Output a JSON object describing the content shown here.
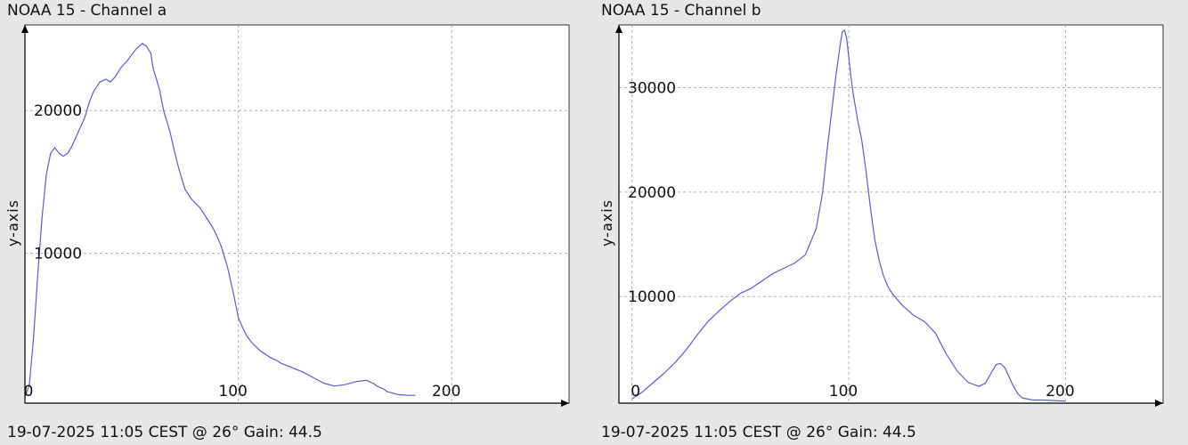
{
  "charts": [
    {
      "title": "NOAA 15 - Channel a",
      "footer": "19-07-2025 11:05 CEST @ 26° Gain: 44.5"
    },
    {
      "title": "NOAA 15 - Channel b",
      "footer": "19-07-2025 11:05 CEST @ 26° Gain: 44.5"
    }
  ],
  "colors": {
    "background": "#e7e7e7",
    "plot_background": "#ffffff",
    "line": "#5b5bd6",
    "grid": "#b0b0b0",
    "axis": "#000000"
  },
  "chart_data": [
    {
      "type": "line",
      "title": "NOAA 15 - Channel a",
      "xlabel": "",
      "ylabel": "y-axis",
      "xlim": [
        0,
        255
      ],
      "ylim": [
        -500,
        26000
      ],
      "xticks": [
        0,
        100,
        200
      ],
      "yticks": [
        10000,
        20000
      ],
      "x_tick_labels": [
        "0",
        "100",
        "200"
      ],
      "y_tick_labels": [
        "10000",
        "20000"
      ],
      "grid": true,
      "series": [
        {
          "x": [
            0,
            2,
            4,
            6,
            8,
            10,
            12,
            14,
            16,
            18,
            20,
            22,
            25,
            28,
            30,
            32,
            35,
            38,
            40,
            42,
            45,
            48,
            50,
            52,
            55,
            57,
            59,
            60,
            61,
            63,
            65,
            68,
            70,
            72,
            75,
            78,
            80,
            82,
            85,
            88,
            90,
            92,
            95,
            98,
            100,
            102,
            104,
            106,
            108,
            110,
            113,
            115,
            118,
            120,
            125,
            130,
            135,
            140,
            145,
            150,
            155,
            160,
            163,
            165,
            168,
            170,
            175,
            180,
            183
          ],
          "y": [
            0,
            700,
            4000,
            8500,
            12500,
            15500,
            17000,
            17400,
            17000,
            16800,
            17000,
            17500,
            18500,
            19500,
            20500,
            21300,
            22000,
            22200,
            22000,
            22300,
            23000,
            23500,
            23900,
            24300,
            24700,
            24500,
            24000,
            23000,
            22500,
            21500,
            20000,
            18500,
            17200,
            16000,
            14500,
            13800,
            13500,
            13200,
            12500,
            11800,
            11200,
            10500,
            9000,
            7000,
            5500,
            4800,
            4200,
            3800,
            3500,
            3200,
            2900,
            2700,
            2500,
            2300,
            2000,
            1700,
            1300,
            900,
            700,
            800,
            1000,
            1100,
            900,
            700,
            500,
            300,
            100,
            50,
            50
          ]
        }
      ]
    },
    {
      "type": "line",
      "title": "NOAA 15 - Channel b",
      "xlabel": "",
      "ylabel": "y-axis",
      "xlim": [
        -6,
        245
      ],
      "ylim": [
        -200,
        36000
      ],
      "xticks": [
        0,
        100,
        200
      ],
      "yticks": [
        10000,
        20000,
        30000
      ],
      "x_tick_labels": [
        "0",
        "100",
        "200"
      ],
      "y_tick_labels": [
        "10000",
        "20000",
        "30000"
      ],
      "grid": true,
      "series": [
        {
          "x": [
            0,
            5,
            10,
            15,
            20,
            25,
            30,
            35,
            40,
            45,
            50,
            55,
            60,
            65,
            70,
            75,
            80,
            85,
            88,
            90,
            92,
            94,
            96,
            97,
            98,
            99,
            100,
            101,
            102,
            104,
            106,
            108,
            110,
            112,
            114,
            116,
            118,
            120,
            125,
            130,
            135,
            140,
            145,
            150,
            155,
            160,
            163,
            166,
            168,
            170,
            172,
            174,
            176,
            178,
            180,
            185,
            190,
            195,
            200
          ],
          "y": [
            200,
            900,
            1800,
            2700,
            3700,
            4900,
            6300,
            7600,
            8600,
            9500,
            10300,
            10800,
            11500,
            12200,
            12700,
            13200,
            14000,
            16500,
            20000,
            24000,
            27500,
            31000,
            34000,
            35300,
            35500,
            34800,
            33000,
            31000,
            29500,
            27000,
            25000,
            22000,
            18500,
            15500,
            13500,
            12000,
            11000,
            10300,
            9100,
            8200,
            7600,
            6500,
            4500,
            2900,
            1800,
            1400,
            1700,
            2800,
            3500,
            3600,
            3200,
            2300,
            1400,
            700,
            300,
            100,
            100,
            50,
            0
          ]
        }
      ]
    }
  ]
}
